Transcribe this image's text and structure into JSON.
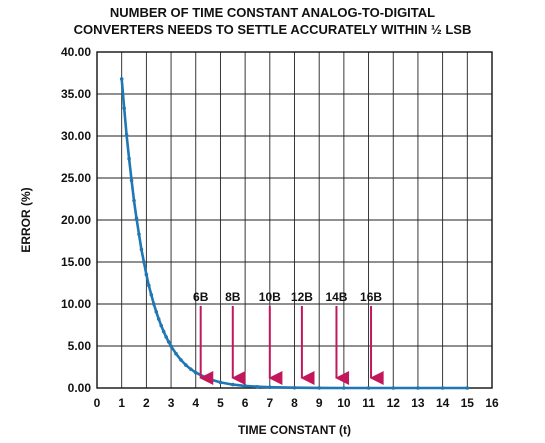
{
  "chart_data": {
    "type": "line",
    "title_line1": "NUMBER OF TIME CONSTANT ANALOG-TO-DIGITAL",
    "title_line2": "CONVERTERS NEEDS TO SETTLE ACCURATELY WITHIN ½ LSB",
    "xlabel": "TIME CONSTANT (t)",
    "ylabel": "ERROR (%)",
    "xlim": [
      0,
      16
    ],
    "ylim": [
      0,
      40
    ],
    "x_ticks": [
      "0",
      "1",
      "2",
      "3",
      "4",
      "5",
      "6",
      "7",
      "8",
      "9",
      "10",
      "11",
      "12",
      "13",
      "14",
      "15",
      "16"
    ],
    "y_ticks": [
      "0.00",
      "5.00",
      "10.00",
      "15.00",
      "20.00",
      "25.00",
      "30.00",
      "35.00",
      "40.00"
    ],
    "grid": true,
    "line_color": "#1f77b4",
    "arrow_color": "#c2185b",
    "series": [
      {
        "x": [
          1.0,
          1.1,
          1.2,
          1.3,
          1.4,
          1.5,
          1.6,
          1.7,
          1.8,
          1.9,
          2.0,
          2.1,
          2.2,
          2.3,
          2.4,
          2.5,
          2.6,
          2.7,
          2.8,
          2.9,
          3.0,
          3.2,
          3.4,
          3.6,
          3.8,
          4.0,
          4.5,
          5.0,
          5.5,
          6.0,
          6.5,
          7.0,
          8.0,
          9.0,
          10.0,
          11.0,
          12.0,
          13.0,
          14.0,
          15.0
        ],
        "y": [
          36.8,
          33.3,
          30.1,
          27.3,
          24.7,
          22.3,
          20.2,
          18.3,
          16.5,
          15.0,
          13.5,
          12.2,
          11.1,
          10.0,
          9.07,
          8.21,
          7.43,
          6.72,
          6.08,
          5.5,
          4.98,
          4.08,
          3.34,
          2.73,
          2.24,
          1.83,
          1.11,
          0.67,
          0.41,
          0.25,
          0.15,
          0.09,
          0.03,
          0.01,
          0.0,
          0.0,
          0.0,
          0.0,
          0.0,
          0.0
        ]
      }
    ],
    "annotations": [
      {
        "label": "6B",
        "x": 4.2
      },
      {
        "label": "8B",
        "x": 5.5
      },
      {
        "label": "10B",
        "x": 7.0
      },
      {
        "label": "12B",
        "x": 8.3
      },
      {
        "label": "14B",
        "x": 9.7
      },
      {
        "label": "16B",
        "x": 11.1
      }
    ]
  }
}
